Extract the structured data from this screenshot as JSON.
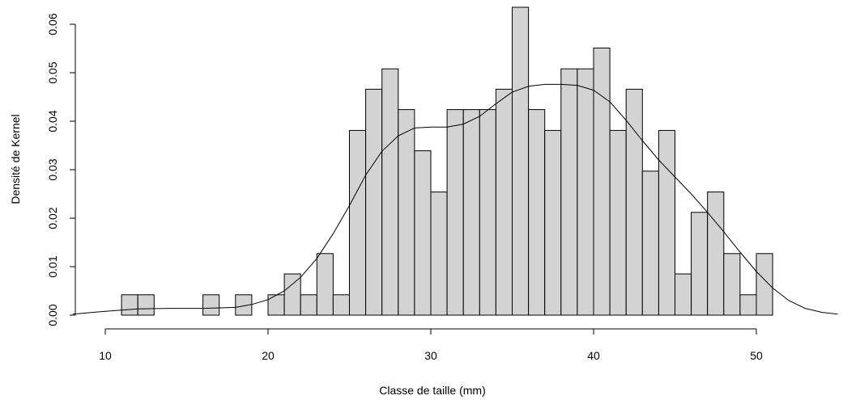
{
  "chart_data": {
    "type": "bar",
    "subtype": "histogram with density curve",
    "xlabel": "Classe de taille (mm)",
    "ylabel": "Densité de Kernel",
    "xlim": [
      8,
      55.5
    ],
    "ylim": [
      0,
      0.0635
    ],
    "x_ticks": [
      10,
      20,
      30,
      40,
      50
    ],
    "y_ticks": [
      0.0,
      0.01,
      0.02,
      0.03,
      0.04,
      0.05,
      0.06
    ],
    "y_tick_labels": [
      "0.00",
      "0.01",
      "0.02",
      "0.03",
      "0.04",
      "0.05",
      "0.06"
    ],
    "bin_width": 1,
    "bins": [
      {
        "x0": 11,
        "x1": 12,
        "density": 0.0042
      },
      {
        "x0": 12,
        "x1": 13,
        "density": 0.0042
      },
      {
        "x0": 16,
        "x1": 17,
        "density": 0.0042
      },
      {
        "x0": 18,
        "x1": 19,
        "density": 0.0042
      },
      {
        "x0": 20,
        "x1": 21,
        "density": 0.0042
      },
      {
        "x0": 21,
        "x1": 22,
        "density": 0.0085
      },
      {
        "x0": 22,
        "x1": 23,
        "density": 0.0042
      },
      {
        "x0": 23,
        "x1": 24,
        "density": 0.0127
      },
      {
        "x0": 24,
        "x1": 25,
        "density": 0.0042
      },
      {
        "x0": 25,
        "x1": 26,
        "density": 0.0381
      },
      {
        "x0": 26,
        "x1": 27,
        "density": 0.0466
      },
      {
        "x0": 27,
        "x1": 28,
        "density": 0.0508
      },
      {
        "x0": 28,
        "x1": 29,
        "density": 0.0424
      },
      {
        "x0": 29,
        "x1": 30,
        "density": 0.0339
      },
      {
        "x0": 30,
        "x1": 31,
        "density": 0.0254
      },
      {
        "x0": 31,
        "x1": 32,
        "density": 0.0424
      },
      {
        "x0": 32,
        "x1": 33,
        "density": 0.0424
      },
      {
        "x0": 33,
        "x1": 34,
        "density": 0.0424
      },
      {
        "x0": 34,
        "x1": 35,
        "density": 0.0466
      },
      {
        "x0": 35,
        "x1": 36,
        "density": 0.0635
      },
      {
        "x0": 36,
        "x1": 37,
        "density": 0.0424
      },
      {
        "x0": 37,
        "x1": 38,
        "density": 0.0381
      },
      {
        "x0": 38,
        "x1": 39,
        "density": 0.0508
      },
      {
        "x0": 39,
        "x1": 40,
        "density": 0.0508
      },
      {
        "x0": 40,
        "x1": 41,
        "density": 0.0551
      },
      {
        "x0": 41,
        "x1": 42,
        "density": 0.0381
      },
      {
        "x0": 42,
        "x1": 43,
        "density": 0.0466
      },
      {
        "x0": 43,
        "x1": 44,
        "density": 0.0297
      },
      {
        "x0": 44,
        "x1": 45,
        "density": 0.0381
      },
      {
        "x0": 45,
        "x1": 46,
        "density": 0.0085
      },
      {
        "x0": 46,
        "x1": 47,
        "density": 0.0212
      },
      {
        "x0": 47,
        "x1": 48,
        "density": 0.0254
      },
      {
        "x0": 48,
        "x1": 49,
        "density": 0.0127
      },
      {
        "x0": 49,
        "x1": 50,
        "density": 0.0042
      },
      {
        "x0": 50,
        "x1": 51,
        "density": 0.0127
      }
    ],
    "density_curve": {
      "x": [
        8,
        10,
        12,
        14,
        16,
        18,
        19,
        20,
        21,
        22,
        23,
        24,
        25,
        26,
        27,
        28,
        29,
        30,
        31,
        32,
        33,
        34,
        35,
        36,
        37,
        38,
        39,
        40,
        41,
        42,
        43,
        44,
        45,
        46,
        47,
        48,
        49,
        50,
        51,
        52,
        53,
        54,
        55
      ],
      "y": [
        0.0002,
        0.0008,
        0.0013,
        0.0014,
        0.0014,
        0.0016,
        0.0022,
        0.0032,
        0.005,
        0.0078,
        0.0117,
        0.0168,
        0.0226,
        0.0289,
        0.0338,
        0.037,
        0.0386,
        0.0388,
        0.0388,
        0.0394,
        0.041,
        0.0436,
        0.046,
        0.0472,
        0.0476,
        0.0476,
        0.0474,
        0.0464,
        0.044,
        0.0402,
        0.036,
        0.032,
        0.0285,
        0.025,
        0.0212,
        0.0172,
        0.013,
        0.009,
        0.0056,
        0.003,
        0.0014,
        0.0006,
        0.0002
      ]
    },
    "bar_fill": "#d3d3d3",
    "bar_stroke": "#000000",
    "curve_color": "#000000",
    "grid": false
  }
}
